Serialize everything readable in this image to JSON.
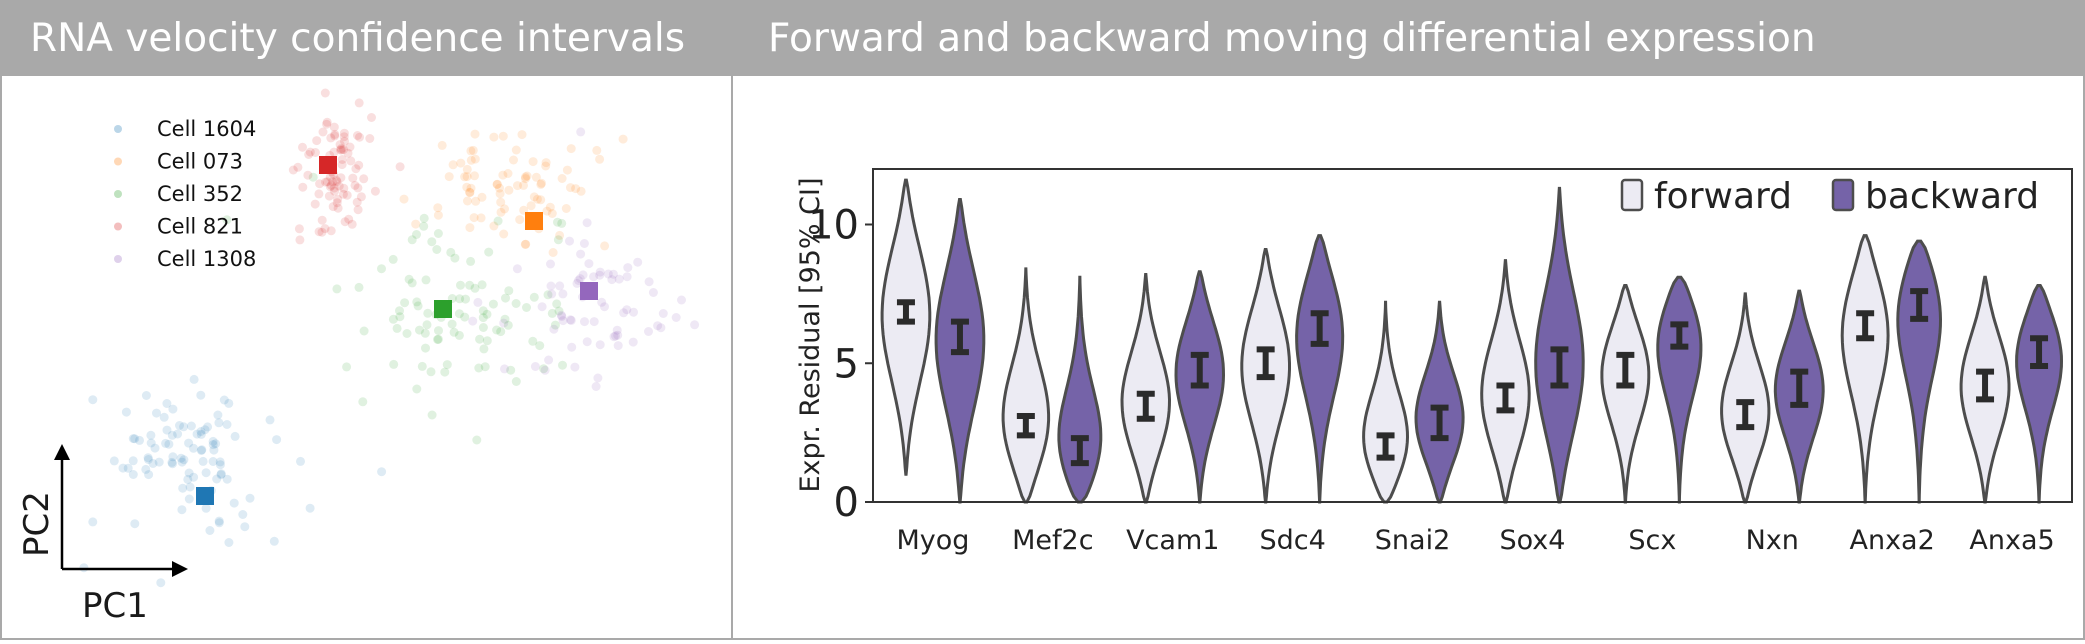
{
  "left_panel": {
    "title": "RNA velocity confidence intervals",
    "legend": [
      {
        "label": "Cell 1604",
        "color": "#1f77b4"
      },
      {
        "label": "Cell 073",
        "color": "#ff7f0e"
      },
      {
        "label": "Cell 352",
        "color": "#2ca02c"
      },
      {
        "label": "Cell 821",
        "color": "#d62728"
      },
      {
        "label": "Cell 1308",
        "color": "#9467bd"
      }
    ],
    "axis_x_label": "PC1",
    "axis_y_label": "PC2"
  },
  "right_panel": {
    "title": "Forward and backward moving differential expression"
  },
  "chart_data": {
    "type": "violin",
    "ylabel": "Expr. Residual [95% CI]",
    "xlabel": "",
    "ylim": [
      0,
      12
    ],
    "yticks": [
      0,
      5,
      10
    ],
    "legend_placement": "top-right",
    "colors": {
      "forward": "#ecebf3",
      "backward": "#7563a8",
      "outline": "#4d4d4d"
    },
    "categories": [
      "Myog",
      "Mef2c",
      "Vcam1",
      "Sdc4",
      "Snai2",
      "Sox4",
      "Scx",
      "Nxn",
      "Anxa2",
      "Anxa5"
    ],
    "series": [
      {
        "name": "forward",
        "range": [
          [
            1.0,
            11.6
          ],
          [
            0.0,
            8.4
          ],
          [
            0.0,
            8.2
          ],
          [
            0.0,
            9.1
          ],
          [
            0.0,
            7.2
          ],
          [
            0.0,
            8.7
          ],
          [
            0.0,
            7.8
          ],
          [
            0.0,
            7.5
          ],
          [
            0.0,
            9.6
          ],
          [
            0.0,
            8.1
          ]
        ],
        "ci_low": [
          6.5,
          2.4,
          3.0,
          4.5,
          1.6,
          3.3,
          4.2,
          2.7,
          5.9,
          3.7
        ],
        "ci_high": [
          7.2,
          3.1,
          3.9,
          5.5,
          2.4,
          4.2,
          5.3,
          3.6,
          6.8,
          4.7
        ]
      },
      {
        "name": "backward",
        "range": [
          [
            0.0,
            10.9
          ],
          [
            0.0,
            8.1
          ],
          [
            0.0,
            8.3
          ],
          [
            0.0,
            9.6
          ],
          [
            0.0,
            7.2
          ],
          [
            0.0,
            11.3
          ],
          [
            0.0,
            8.1
          ],
          [
            0.0,
            7.6
          ],
          [
            0.0,
            9.4
          ],
          [
            0.0,
            7.8
          ]
        ],
        "ci_low": [
          5.4,
          1.4,
          4.2,
          5.7,
          2.3,
          4.2,
          5.6,
          3.5,
          6.6,
          4.9
        ],
        "ci_high": [
          6.5,
          2.3,
          5.3,
          6.8,
          3.4,
          5.5,
          6.4,
          4.7,
          7.6,
          5.9
        ]
      }
    ]
  }
}
